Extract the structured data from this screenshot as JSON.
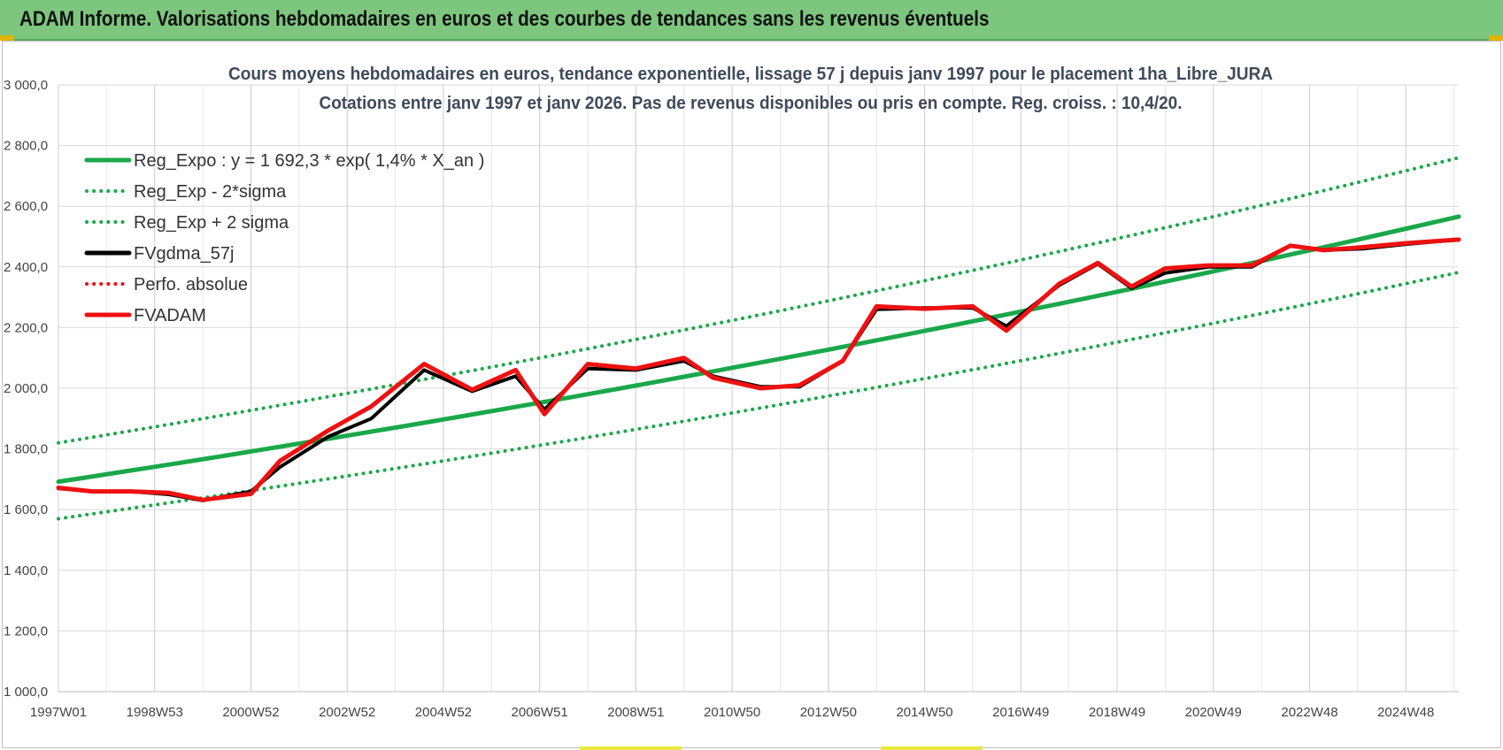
{
  "banner": {
    "title": "ADAM Informe. Valorisations hebdomadaires en euros et des courbes de tendances sans les revenus éventuels"
  },
  "colors": {
    "banner_bg": "#7dc67e",
    "reg_green": "#1aa84a",
    "fv_red": "#ee1111",
    "fv_black": "#000000",
    "grid": "#d9d9d9"
  },
  "chart_data": {
    "type": "line",
    "title": "Cours moyens hebdomadaires en euros, tendance exponentielle, lissage 57 j depuis janv 1997 pour le placement 1ha_Libre_JURA",
    "subtitle": "Cotations entre janv 1997 et janv 2026. Pas de revenus disponibles ou pris en compte. Reg. croiss. : 10,4/20.",
    "ylim": [
      1000,
      3000
    ],
    "y_ticks": [
      "3 000,0",
      "2 800,0",
      "2 600,0",
      "2 400,0",
      "2 200,0",
      "2 000,0",
      "1 800,0",
      "1 600,0",
      "1 400,0",
      "1 200,0",
      "1 000,0"
    ],
    "y_tick_values": [
      3000,
      2800,
      2600,
      2400,
      2200,
      2000,
      1800,
      1600,
      1400,
      1200,
      1000
    ],
    "x_ticks": [
      "1997W01",
      "1998W53",
      "2000W52",
      "2002W52",
      "2004W52",
      "2006W51",
      "2008W51",
      "2010W50",
      "2012W50",
      "2014W50",
      "2016W49",
      "2018W49",
      "2020W49",
      "2022W48",
      "2024W48"
    ],
    "xlim": [
      1997.0,
      2026.1
    ],
    "x_tick_years": [
      1997.0,
      1999.0,
      2001.0,
      2003.0,
      2005.0,
      2007.0,
      2009.0,
      2011.0,
      2013.0,
      2015.0,
      2017.0,
      2019.0,
      2021.0,
      2023.0,
      2025.0
    ],
    "grid": true,
    "legend_position": "top-left",
    "legend": [
      {
        "key": "reg_expo",
        "label": "Reg_Expo : y = 1 692,3 * exp( 1,4% *  X_an )",
        "style": "solid",
        "color": "#1aa84a"
      },
      {
        "key": "reg_minus",
        "label": "Reg_Exp - 2*sigma",
        "style": "dotted",
        "color": "#1aa84a"
      },
      {
        "key": "reg_plus",
        "label": "Reg_Exp + 2 sigma",
        "style": "dotted",
        "color": "#1aa84a"
      },
      {
        "key": "fvgdma",
        "label": "FVgdma_57j",
        "style": "solid",
        "color": "#000000"
      },
      {
        "key": "perfo",
        "label": "Perfo. absolue",
        "style": "dotted",
        "color": "#ee1111"
      },
      {
        "key": "fvadam",
        "label": "FVADAM",
        "style": "solid",
        "color": "#ee1111"
      }
    ],
    "series": [
      {
        "key": "reg_expo",
        "x": [
          1997.0,
          2026.1
        ],
        "y": [
          1692,
          2566
        ]
      },
      {
        "key": "reg_minus",
        "x": [
          1997.0,
          2026.1
        ],
        "y": [
          1570,
          2382
        ]
      },
      {
        "key": "reg_plus",
        "x": [
          1997.0,
          2026.1
        ],
        "y": [
          1820,
          2760
        ]
      },
      {
        "key": "fvgdma",
        "x": [
          1997.0,
          1997.7,
          1998.5,
          1999.3,
          2000.0,
          2001.0,
          2001.6,
          2002.6,
          2003.5,
          2004.6,
          2005.6,
          2006.5,
          2007.1,
          2008.0,
          2009.0,
          2010.0,
          2010.6,
          2011.6,
          2012.4,
          2013.3,
          2014.0,
          2015.0,
          2016.0,
          2016.7,
          2017.8,
          2018.6,
          2019.3,
          2020.0,
          2020.9,
          2021.8,
          2022.6,
          2023.3,
          2024.1,
          2025.0,
          2026.1
        ],
        "y": [
          1670,
          1660,
          1660,
          1650,
          1630,
          1660,
          1740,
          1840,
          1900,
          2060,
          1990,
          2040,
          1930,
          2065,
          2060,
          2090,
          2040,
          2005,
          2005,
          2090,
          2260,
          2265,
          2265,
          2205,
          2340,
          2410,
          2330,
          2380,
          2400,
          2400,
          2470,
          2455,
          2460,
          2475,
          2490
        ]
      },
      {
        "key": "fvadam",
        "x": [
          1997.0,
          1997.7,
          1998.5,
          1999.3,
          2000.0,
          2001.0,
          2001.6,
          2002.6,
          2003.5,
          2004.6,
          2005.6,
          2006.5,
          2007.1,
          2008.0,
          2009.0,
          2010.0,
          2010.6,
          2011.6,
          2012.4,
          2013.3,
          2014.0,
          2015.0,
          2016.0,
          2016.7,
          2017.8,
          2018.6,
          2019.3,
          2020.0,
          2020.9,
          2021.8,
          2022.6,
          2023.3,
          2024.1,
          2025.0,
          2026.1
        ],
        "y": [
          1672,
          1660,
          1660,
          1655,
          1632,
          1652,
          1760,
          1860,
          1940,
          2080,
          1995,
          2060,
          1915,
          2080,
          2065,
          2100,
          2035,
          2000,
          2010,
          2090,
          2270,
          2262,
          2270,
          2190,
          2345,
          2413,
          2335,
          2395,
          2405,
          2405,
          2470,
          2455,
          2465,
          2478,
          2490
        ]
      }
    ]
  }
}
